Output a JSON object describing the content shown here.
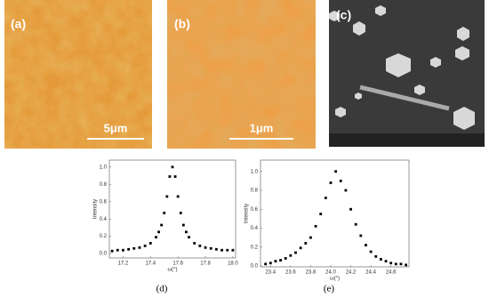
{
  "panels": [
    {
      "label": "(a)",
      "scale_bar": "5μm"
    },
    {
      "label": "(b)",
      "scale_bar": "1μm"
    },
    {
      "label": "(c)"
    }
  ],
  "chart_data": [
    {
      "type": "scatter",
      "caption": "(d)",
      "x_label": "ω(°)",
      "y_label": "Intensity",
      "color": "#000000",
      "x": [
        17.12,
        17.16,
        17.2,
        17.24,
        17.28,
        17.32,
        17.36,
        17.4,
        17.44,
        17.46,
        17.48,
        17.5,
        17.52,
        17.54,
        17.56,
        17.58,
        17.6,
        17.62,
        17.64,
        17.66,
        17.68,
        17.72,
        17.76,
        17.8,
        17.84,
        17.88,
        17.92,
        17.96,
        18.0
      ],
      "values": [
        0.03,
        0.04,
        0.04,
        0.05,
        0.06,
        0.07,
        0.09,
        0.12,
        0.19,
        0.25,
        0.33,
        0.47,
        0.66,
        0.89,
        1.0,
        0.89,
        0.66,
        0.47,
        0.33,
        0.25,
        0.19,
        0.12,
        0.09,
        0.07,
        0.06,
        0.05,
        0.04,
        0.04,
        0.04
      ],
      "xlim": [
        17.1,
        18.02
      ],
      "ylim": [
        -0.05,
        1.08
      ],
      "xticks": [
        17.2,
        17.4,
        17.6,
        17.8,
        {
          "value": 18.0,
          "label": "18.0"
        }
      ],
      "yticks": [
        {
          "value": 0,
          "label": "0.0"
        },
        0.2,
        0.4,
        0.6,
        0.8,
        {
          "value": 1,
          "label": "1.0"
        }
      ]
    },
    {
      "type": "scatter",
      "caption": "(e)",
      "x_label": "ω(°)",
      "y_label": "Intensity",
      "color": "#000000",
      "x": [
        23.35,
        23.4,
        23.45,
        23.5,
        23.55,
        23.6,
        23.65,
        23.7,
        23.75,
        23.8,
        23.85,
        23.9,
        23.95,
        24.0,
        24.05,
        24.1,
        24.15,
        24.2,
        24.25,
        24.3,
        24.35,
        24.4,
        24.45,
        24.5,
        24.55,
        24.6,
        24.65,
        24.7,
        24.75
      ],
      "values": [
        0.02,
        0.03,
        0.05,
        0.06,
        0.08,
        0.11,
        0.14,
        0.19,
        0.24,
        0.3,
        0.42,
        0.55,
        0.72,
        0.88,
        1.0,
        0.9,
        0.8,
        0.6,
        0.44,
        0.32,
        0.22,
        0.15,
        0.1,
        0.07,
        0.05,
        0.03,
        0.02,
        0.02,
        0.01
      ],
      "xlim": [
        23.3,
        24.78
      ],
      "ylim": [
        -0.01,
        1.12
      ],
      "xticks": [
        23.4,
        23.6,
        23.8,
        {
          "value": 24.0,
          "label": "24.0"
        },
        24.2,
        24.4,
        24.6
      ],
      "yticks": [
        {
          "value": 0,
          "label": "0.0"
        },
        0.2,
        0.4,
        0.6,
        0.8,
        {
          "value": 1,
          "label": "1.0"
        }
      ]
    }
  ]
}
